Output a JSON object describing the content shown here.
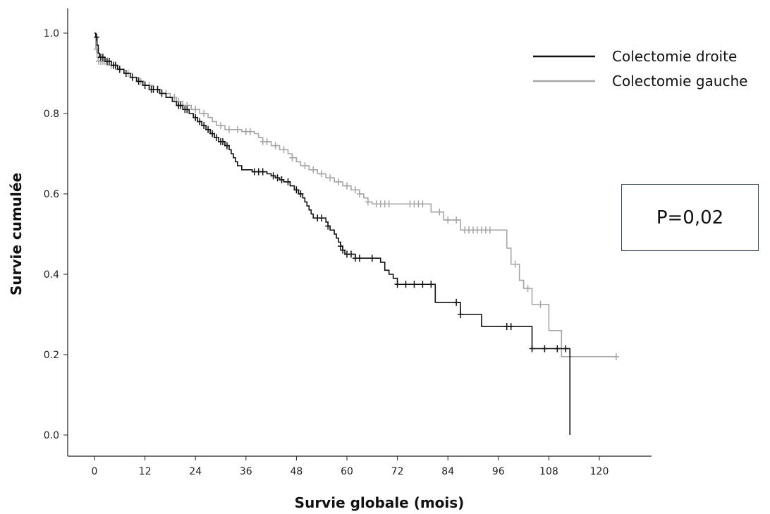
{
  "chart_data": {
    "type": "line",
    "subtype": "kaplan-meier",
    "title": "",
    "xlabel": "Survie globale (mois)",
    "ylabel": "Survie cumulée",
    "xlim": [
      0,
      120
    ],
    "ylim": [
      0,
      1
    ],
    "x_ticks": [
      "0",
      "12",
      "24",
      "36",
      "48",
      "60",
      "72",
      "84",
      "96",
      "108",
      "120"
    ],
    "y_ticks": [
      "0.0",
      "0.2",
      "0.4",
      "0.6",
      "0.8",
      "1.0"
    ],
    "grid": false,
    "legend_position": "top-right",
    "annotation": "P=0,02",
    "series": [
      {
        "name": "Colectomie droite",
        "color": "#111111",
        "steps": [
          [
            0,
            1.0
          ],
          [
            0.3,
            0.99
          ],
          [
            0.6,
            0.97
          ],
          [
            0.9,
            0.95
          ],
          [
            1.2,
            0.94
          ],
          [
            2.5,
            0.93
          ],
          [
            4,
            0.92
          ],
          [
            5.5,
            0.91
          ],
          [
            7,
            0.9
          ],
          [
            8.5,
            0.89
          ],
          [
            10,
            0.88
          ],
          [
            11.5,
            0.87
          ],
          [
            13,
            0.86
          ],
          [
            15.5,
            0.85
          ],
          [
            17,
            0.84
          ],
          [
            18.5,
            0.83
          ],
          [
            19.5,
            0.82
          ],
          [
            21,
            0.81
          ],
          [
            22.5,
            0.8
          ],
          [
            23.5,
            0.79
          ],
          [
            24.5,
            0.78
          ],
          [
            25.5,
            0.77
          ],
          [
            26.5,
            0.76
          ],
          [
            27.5,
            0.75
          ],
          [
            28.5,
            0.74
          ],
          [
            29.5,
            0.73
          ],
          [
            31,
            0.72
          ],
          [
            32,
            0.71
          ],
          [
            32.5,
            0.7
          ],
          [
            33,
            0.69
          ],
          [
            33.5,
            0.68
          ],
          [
            34,
            0.67
          ],
          [
            35,
            0.66
          ],
          [
            37.5,
            0.655
          ],
          [
            41,
            0.65
          ],
          [
            42,
            0.645
          ],
          [
            43,
            0.64
          ],
          [
            44,
            0.635
          ],
          [
            45,
            0.63
          ],
          [
            46.5,
            0.62
          ],
          [
            47.5,
            0.61
          ],
          [
            48.5,
            0.6
          ],
          [
            49.5,
            0.59
          ],
          [
            50,
            0.58
          ],
          [
            50.5,
            0.57
          ],
          [
            51,
            0.56
          ],
          [
            51.5,
            0.55
          ],
          [
            52,
            0.54
          ],
          [
            55,
            0.53
          ],
          [
            55.5,
            0.52
          ],
          [
            56,
            0.51
          ],
          [
            57,
            0.5
          ],
          [
            57.5,
            0.49
          ],
          [
            58,
            0.48
          ],
          [
            58.5,
            0.47
          ],
          [
            59,
            0.46
          ],
          [
            59.5,
            0.45
          ],
          [
            62,
            0.44
          ],
          [
            68,
            0.43
          ],
          [
            69,
            0.41
          ],
          [
            70,
            0.4
          ],
          [
            71,
            0.39
          ],
          [
            72,
            0.375
          ],
          [
            81,
            0.33
          ],
          [
            87,
            0.3
          ],
          [
            92,
            0.27
          ],
          [
            104,
            0.215
          ],
          [
            113,
            0.0
          ]
        ],
        "end_x": 113,
        "censored_x": [
          0.5,
          1.5,
          2,
          3,
          3.5,
          4.5,
          5,
          6,
          7.5,
          9,
          10.5,
          12,
          13.5,
          14,
          15,
          16,
          20,
          20.5,
          21.5,
          22,
          24,
          25,
          26,
          27,
          28,
          29,
          30,
          30.5,
          31.5,
          38,
          39,
          40,
          42.5,
          43.5,
          44.5,
          46,
          48,
          49,
          53,
          54,
          55.5,
          58.5,
          59,
          60,
          61,
          62,
          63,
          66,
          72,
          74,
          76,
          78,
          80,
          86,
          87,
          98,
          99,
          104,
          107,
          110,
          112
        ]
      },
      {
        "name": "Colectomie gauche",
        "color": "#a6a6a6",
        "steps": [
          [
            0,
            1.0
          ],
          [
            0.3,
            0.96
          ],
          [
            0.6,
            0.94
          ],
          [
            0.9,
            0.93
          ],
          [
            3,
            0.92
          ],
          [
            5,
            0.91
          ],
          [
            7,
            0.9
          ],
          [
            9,
            0.89
          ],
          [
            10.5,
            0.88
          ],
          [
            12,
            0.87
          ],
          [
            14,
            0.86
          ],
          [
            16,
            0.85
          ],
          [
            18,
            0.84
          ],
          [
            19.5,
            0.83
          ],
          [
            21,
            0.82
          ],
          [
            23,
            0.81
          ],
          [
            25,
            0.8
          ],
          [
            27,
            0.79
          ],
          [
            28,
            0.78
          ],
          [
            29,
            0.77
          ],
          [
            31,
            0.76
          ],
          [
            35,
            0.755
          ],
          [
            38,
            0.75
          ],
          [
            39,
            0.74
          ],
          [
            40,
            0.73
          ],
          [
            42,
            0.72
          ],
          [
            44,
            0.71
          ],
          [
            46,
            0.7
          ],
          [
            47,
            0.69
          ],
          [
            48,
            0.68
          ],
          [
            49,
            0.67
          ],
          [
            51,
            0.66
          ],
          [
            53,
            0.65
          ],
          [
            55,
            0.64
          ],
          [
            57,
            0.63
          ],
          [
            59,
            0.62
          ],
          [
            61,
            0.61
          ],
          [
            63,
            0.6
          ],
          [
            64,
            0.59
          ],
          [
            65,
            0.58
          ],
          [
            66,
            0.575
          ],
          [
            80,
            0.555
          ],
          [
            83,
            0.535
          ],
          [
            87,
            0.51
          ],
          [
            98,
            0.465
          ],
          [
            99,
            0.425
          ],
          [
            101,
            0.385
          ],
          [
            102,
            0.365
          ],
          [
            104,
            0.325
          ],
          [
            108,
            0.26
          ],
          [
            111,
            0.195
          ]
        ],
        "end_x": 124,
        "censored_x": [
          0.5,
          1,
          1.5,
          2,
          2.5,
          4,
          6,
          8,
          11,
          13,
          15,
          17,
          19,
          20,
          22,
          24,
          26,
          30,
          32,
          34,
          36,
          37,
          40,
          41,
          43,
          45,
          47,
          50,
          52,
          54,
          56,
          58,
          60,
          62,
          63,
          65,
          67,
          68,
          69,
          70,
          75,
          76,
          77,
          78,
          82,
          84,
          86,
          88,
          89,
          90,
          91,
          92,
          93,
          94,
          100,
          103,
          106,
          124
        ]
      }
    ]
  }
}
